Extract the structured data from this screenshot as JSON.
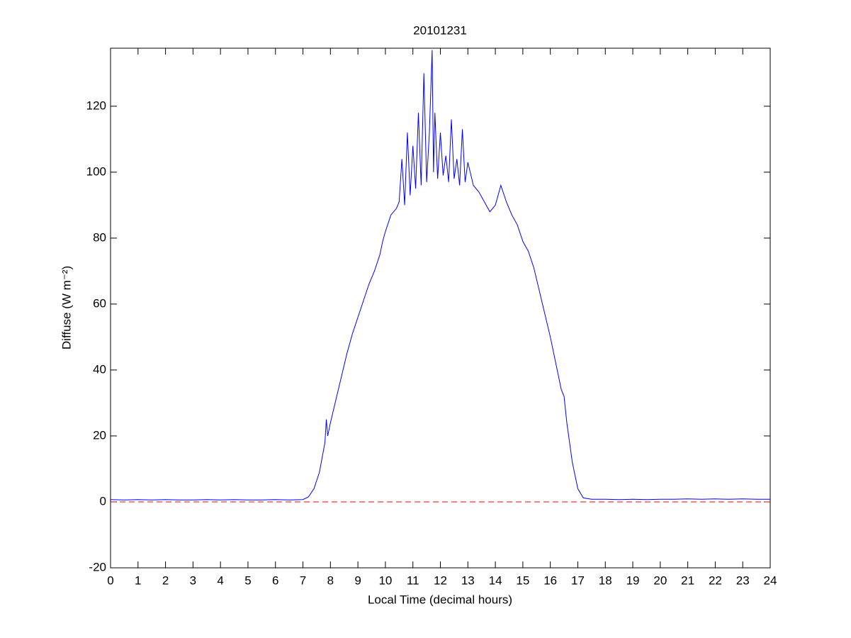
{
  "chart_data": {
    "type": "line",
    "title": "20101231",
    "xlabel": "Local Time (decimal hours)",
    "ylabel": "Diffuse (W m⁻²)",
    "x": [
      0,
      0.5,
      1,
      1.5,
      2,
      2.5,
      3,
      3.5,
      4,
      4.5,
      5,
      5.5,
      6,
      6.5,
      7,
      7.2,
      7.4,
      7.6,
      7.8,
      7.85,
      7.9,
      8,
      8.2,
      8.4,
      8.6,
      8.8,
      9,
      9.2,
      9.4,
      9.6,
      9.8,
      9.9,
      10,
      10.2,
      10.4,
      10.5,
      10.6,
      10.7,
      10.8,
      10.9,
      11,
      11.1,
      11.2,
      11.3,
      11.4,
      11.5,
      11.6,
      11.7,
      11.75,
      11.8,
      11.9,
      12,
      12.1,
      12.2,
      12.3,
      12.4,
      12.5,
      12.6,
      12.7,
      12.8,
      12.9,
      13,
      13.2,
      13.4,
      13.6,
      13.8,
      14,
      14.2,
      14.4,
      14.6,
      14.8,
      15,
      15.2,
      15.4,
      15.6,
      15.8,
      16,
      16.2,
      16.4,
      16.5,
      16.6,
      16.8,
      17,
      17.2,
      17.5,
      18,
      18.5,
      19,
      19.5,
      20,
      20.5,
      21,
      21.5,
      22,
      22.5,
      23,
      23.5,
      24
    ],
    "series": [
      {
        "name": "Diffuse",
        "color": "#0000ff",
        "values": [
          0.7,
          0.6,
          0.7,
          0.6,
          0.7,
          0.6,
          0.6,
          0.7,
          0.6,
          0.7,
          0.6,
          0.6,
          0.7,
          0.6,
          0.7,
          1.5,
          4,
          9,
          18,
          25,
          20,
          24,
          31,
          38,
          45,
          51,
          56,
          61,
          66,
          70,
          75,
          79,
          82,
          87,
          89,
          91,
          104,
          90,
          112,
          93,
          108,
          95,
          118,
          96,
          130,
          97,
          112,
          137,
          100,
          118,
          98,
          112,
          99,
          105,
          97,
          116,
          98,
          104,
          96,
          113,
          97,
          103,
          96,
          94,
          91,
          88,
          90,
          96,
          91,
          87,
          84,
          79,
          76,
          71,
          64,
          57,
          50,
          42,
          34,
          32,
          24,
          12,
          4,
          1.2,
          0.8,
          0.8,
          0.7,
          0.8,
          0.7,
          0.8,
          0.8,
          0.9,
          0.8,
          0.9,
          0.8,
          0.9,
          0.8,
          0.8
        ]
      }
    ],
    "reference_line": {
      "value": 0,
      "color": "#ff0000",
      "dashed": true
    },
    "xlim": [
      0,
      24
    ],
    "xticks": [
      0,
      1,
      2,
      3,
      4,
      5,
      6,
      7,
      8,
      9,
      10,
      11,
      12,
      13,
      14,
      15,
      16,
      17,
      18,
      19,
      20,
      21,
      22,
      23,
      24
    ],
    "ylim": [
      -20,
      137.6
    ],
    "yticks": [
      -20,
      0,
      20,
      40,
      60,
      80,
      100,
      120
    ]
  }
}
